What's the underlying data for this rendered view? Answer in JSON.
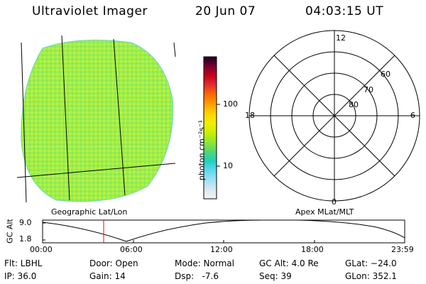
{
  "header": {
    "title": "Ultraviolet Imager",
    "date": "20 Jun 07",
    "time": "04:03:15 UT"
  },
  "colorbar": {
    "unit_label": "photon cm⁻²s⁻¹",
    "tick_100": "100",
    "tick_10": "10",
    "colors": [
      "#1a0020",
      "#7a0030",
      "#c8001a",
      "#e03030",
      "#ff6a00",
      "#ffa000",
      "#ffd400",
      "#f0f000",
      "#c8f000",
      "#90e830",
      "#50d870",
      "#20d0c0",
      "#60d8f0",
      "#a0e0f0",
      "#d8e8f0",
      "#f4f4f4"
    ]
  },
  "left_panel": {
    "caption": "Geographic Lat/Lon",
    "disk_color": "#a8f040"
  },
  "right_panel": {
    "caption": "Apex MLat/MLT",
    "mlt_12": "12",
    "mlt_18": "18",
    "mlt_6": "6",
    "mlt_0": "0",
    "lat_60": "60",
    "lat_70": "70",
    "lat_80": "80"
  },
  "altitude_plot": {
    "ylabel": "GC Alt",
    "ytick_top": "9.0",
    "ytick_bottom": "1.8",
    "xticks": [
      "00:00",
      "06:00",
      "12:00",
      "18:00",
      "23:59"
    ],
    "marker_color": "#ff0000"
  },
  "info": {
    "flt": "Flt: LBHL",
    "ip": "IP: 36.0",
    "door": "Door: Open",
    "gain": "Gain: 14",
    "mode": "Mode: Normal",
    "dsp": "Dsp:   -7.6",
    "gcalt": "GC Alt: 4.0 Re",
    "seq": "Seq: 39",
    "glat": "GLat: −24.0",
    "glon": "GLon: 352.1"
  }
}
